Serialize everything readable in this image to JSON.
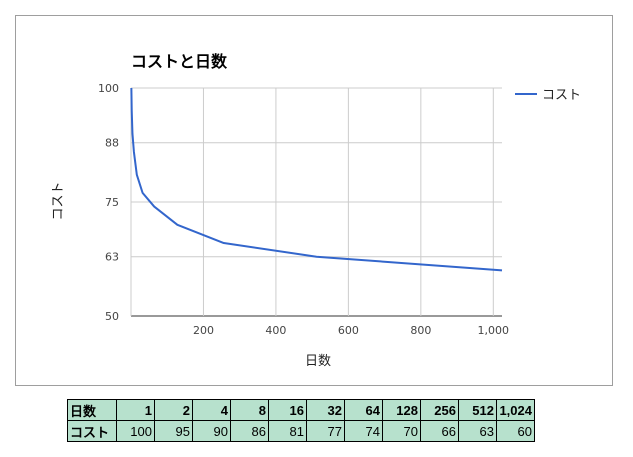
{
  "chart_data": {
    "type": "line",
    "title": "コストと日数",
    "xlabel": "日数",
    "ylabel": "コスト",
    "x": [
      1,
      2,
      4,
      8,
      16,
      32,
      64,
      128,
      256,
      512,
      1024
    ],
    "series": [
      {
        "name": "コスト",
        "values": [
          100,
          95,
          90,
          86,
          81,
          77,
          74,
          70,
          66,
          63,
          60
        ],
        "color": "#3366cc"
      }
    ],
    "xlim": [
      0,
      1024
    ],
    "ylim": [
      50,
      100
    ],
    "xticks": [
      200,
      400,
      600,
      800,
      1000
    ],
    "xtick_labels": [
      "200",
      "400",
      "600",
      "800",
      "1,000"
    ],
    "yticks": [
      50,
      63,
      75,
      88,
      100
    ],
    "ytick_labels": [
      "50",
      "63",
      "75",
      "88",
      "100"
    ],
    "grid": true,
    "legend": "right"
  },
  "table": {
    "row_x_label": "日数",
    "row_y_label": "コスト",
    "row_x": [
      "1",
      "2",
      "4",
      "8",
      "16",
      "32",
      "64",
      "128",
      "256",
      "512",
      "1,024"
    ],
    "row_y": [
      "100",
      "95",
      "90",
      "86",
      "81",
      "77",
      "74",
      "70",
      "66",
      "63",
      "60"
    ]
  }
}
